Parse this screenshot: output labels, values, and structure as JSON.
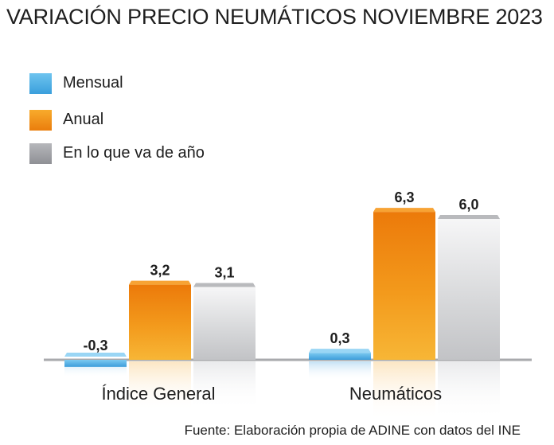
{
  "title": "VARIACIÓN PRECIO NEUMÁTICOS NOVIEMBRE 2023",
  "source": "Fuente: Elaboración propia de ADINE con datos del INE",
  "chart_data": {
    "type": "bar",
    "title": "VARIACIÓN PRECIO NEUMÁTICOS NOVIEMBRE 2023",
    "categories": [
      "Índice General",
      "Neumáticos"
    ],
    "series": [
      {
        "name": "Mensual",
        "values": [
          -0.3,
          0.3
        ],
        "labels": [
          "-0,3",
          "0,3"
        ],
        "color": "#4aa8e2"
      },
      {
        "name": "Anual",
        "values": [
          3.2,
          6.3
        ],
        "labels": [
          "3,2",
          "6,3"
        ],
        "color": "#f29a1e"
      },
      {
        "name": "En lo que va de año",
        "values": [
          3.1,
          6.0
        ],
        "labels": [
          "3,1",
          "6,0"
        ],
        "color": "#a4a5a9"
      }
    ],
    "legend": "top-left",
    "grid": false,
    "ylim": [
      -0.3,
      6.3
    ]
  }
}
